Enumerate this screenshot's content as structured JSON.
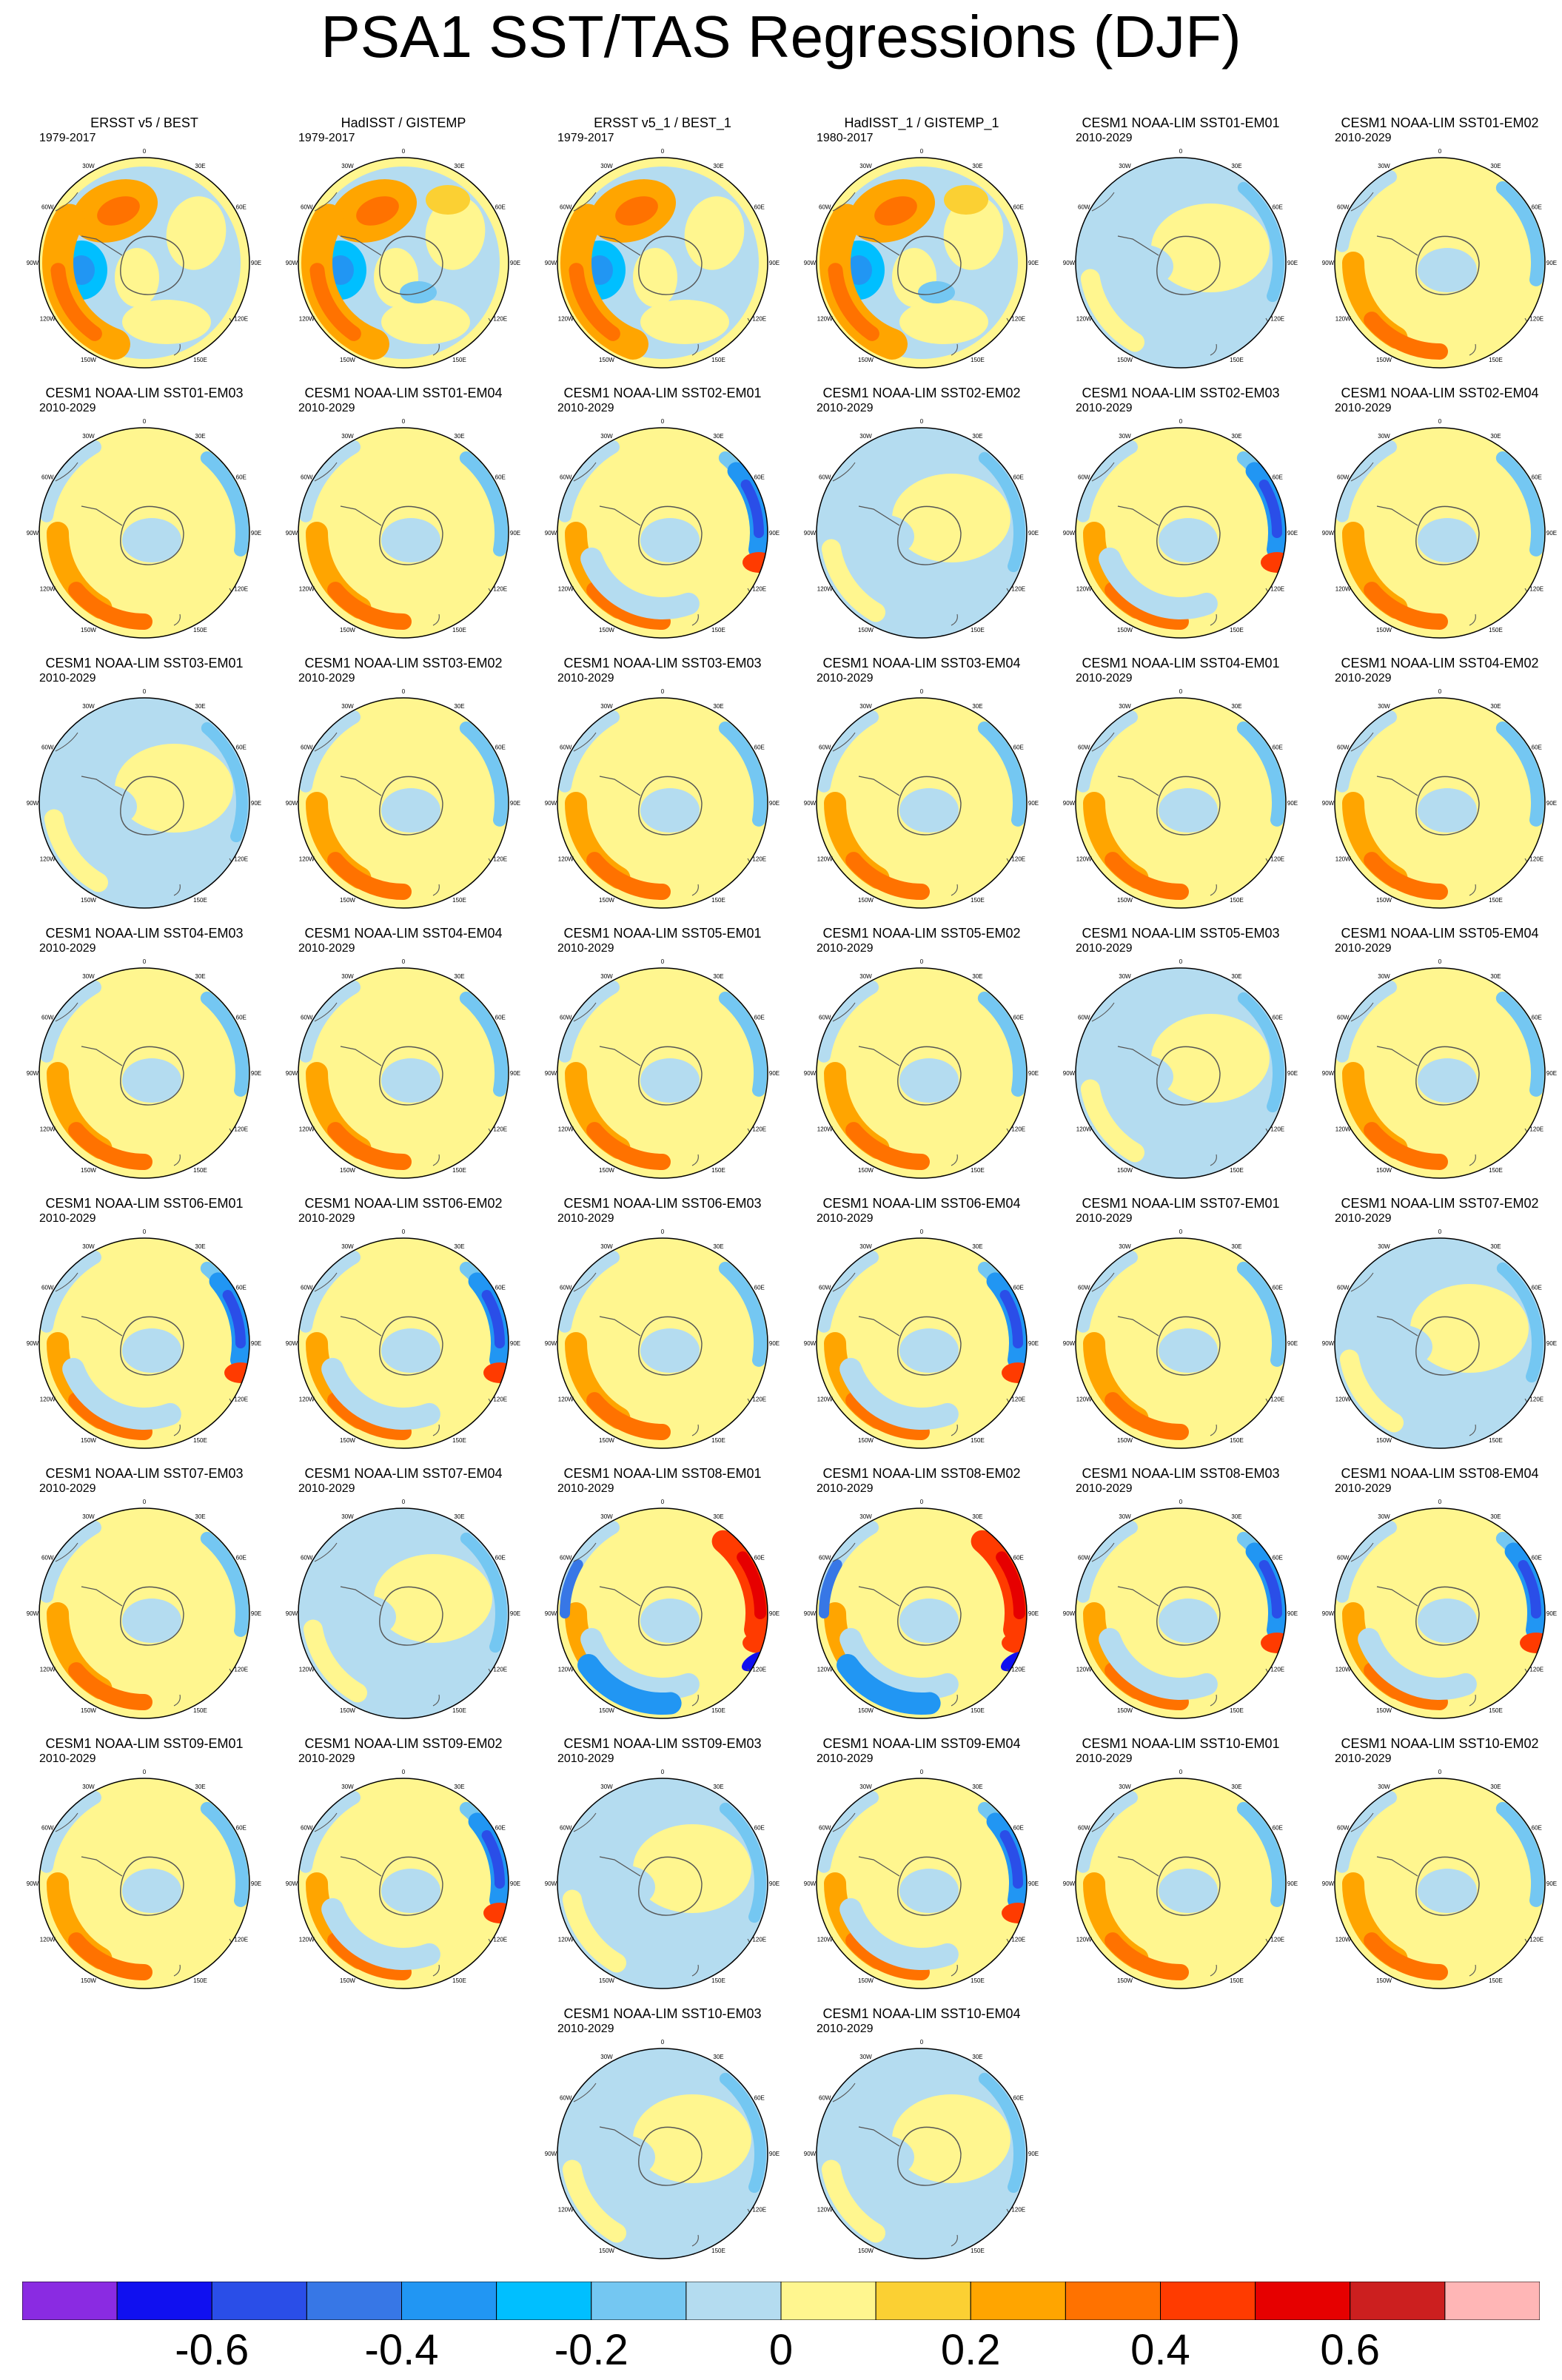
{
  "title": "PSA1 SST/TAS Regressions (DJF)",
  "map_labels": {
    "lon_ticks": [
      "0",
      "30E",
      "60E",
      "90E",
      "120E",
      "150E",
      "180",
      "150W",
      "120W",
      "90W",
      "60W",
      "30W"
    ]
  },
  "palette": [
    "#8a2be2",
    "#1010f0",
    "#2a4ee8",
    "#3777e6",
    "#2196f3",
    "#00bfff",
    "#74c7f2",
    "#b4dcf0",
    "#fff68f",
    "#fbd033",
    "#ffa500",
    "#ff7200",
    "#ff3b00",
    "#e60000",
    "#cc1f1f",
    "#ffb6b6"
  ],
  "colorbar": {
    "labels": [
      "-0.6",
      "-0.4",
      "-0.2",
      "0",
      "0.2",
      "0.4",
      "0.6"
    ]
  },
  "panels": [
    {
      "title": "ERSST v5 / BEST",
      "period": "1979-2017",
      "style": "obs"
    },
    {
      "title": "HadISST / GISTEMP",
      "period": "1979-2017",
      "style": "obs2"
    },
    {
      "title": "ERSST v5_1 / BEST_1",
      "period": "1979-2017",
      "style": "obs"
    },
    {
      "title": "HadISST_1 / GISTEMP_1",
      "period": "1980-2017",
      "style": "obs2"
    },
    {
      "title": "CESM1 NOAA-LIM SST01-EM01",
      "period": "2010-2029",
      "style": "blue"
    },
    {
      "title": "CESM1 NOAA-LIM SST01-EM02",
      "period": "2010-2029",
      "style": "yellow"
    },
    {
      "title": "CESM1 NOAA-LIM SST01-EM03",
      "period": "2010-2029",
      "style": "yellow"
    },
    {
      "title": "CESM1 NOAA-LIM SST01-EM04",
      "period": "2010-2029",
      "style": "yellow"
    },
    {
      "title": "CESM1 NOAA-LIM SST02-EM01",
      "period": "2010-2029",
      "style": "strong"
    },
    {
      "title": "CESM1 NOAA-LIM SST02-EM02",
      "period": "2010-2029",
      "style": "blue"
    },
    {
      "title": "CESM1 NOAA-LIM SST02-EM03",
      "period": "2010-2029",
      "style": "strong"
    },
    {
      "title": "CESM1 NOAA-LIM SST02-EM04",
      "period": "2010-2029",
      "style": "yellow"
    },
    {
      "title": "CESM1 NOAA-LIM SST03-EM01",
      "period": "2010-2029",
      "style": "blue"
    },
    {
      "title": "CESM1 NOAA-LIM SST03-EM02",
      "period": "2010-2029",
      "style": "yellow"
    },
    {
      "title": "CESM1 NOAA-LIM SST03-EM03",
      "period": "2010-2029",
      "style": "yellow"
    },
    {
      "title": "CESM1 NOAA-LIM SST03-EM04",
      "period": "2010-2029",
      "style": "yellow"
    },
    {
      "title": "CESM1 NOAA-LIM SST04-EM01",
      "period": "2010-2029",
      "style": "yellow"
    },
    {
      "title": "CESM1 NOAA-LIM SST04-EM02",
      "period": "2010-2029",
      "style": "yellow"
    },
    {
      "title": "CESM1 NOAA-LIM SST04-EM03",
      "period": "2010-2029",
      "style": "yellow"
    },
    {
      "title": "CESM1 NOAA-LIM SST04-EM04",
      "period": "2010-2029",
      "style": "yellow"
    },
    {
      "title": "CESM1 NOAA-LIM SST05-EM01",
      "period": "2010-2029",
      "style": "yellow"
    },
    {
      "title": "CESM1 NOAA-LIM SST05-EM02",
      "period": "2010-2029",
      "style": "yellow"
    },
    {
      "title": "CESM1 NOAA-LIM SST05-EM03",
      "period": "2010-2029",
      "style": "blue"
    },
    {
      "title": "CESM1 NOAA-LIM SST05-EM04",
      "period": "2010-2029",
      "style": "yellow"
    },
    {
      "title": "CESM1 NOAA-LIM SST06-EM01",
      "period": "2010-2029",
      "style": "strong"
    },
    {
      "title": "CESM1 NOAA-LIM SST06-EM02",
      "period": "2010-2029",
      "style": "strong"
    },
    {
      "title": "CESM1 NOAA-LIM SST06-EM03",
      "period": "2010-2029",
      "style": "yellow"
    },
    {
      "title": "CESM1 NOAA-LIM SST06-EM04",
      "period": "2010-2029",
      "style": "strong"
    },
    {
      "title": "CESM1 NOAA-LIM SST07-EM01",
      "period": "2010-2029",
      "style": "yellow"
    },
    {
      "title": "CESM1 NOAA-LIM SST07-EM02",
      "period": "2010-2029",
      "style": "blue"
    },
    {
      "title": "CESM1 NOAA-LIM SST07-EM03",
      "period": "2010-2029",
      "style": "yellow"
    },
    {
      "title": "CESM1 NOAA-LIM SST07-EM04",
      "period": "2010-2029",
      "style": "blue"
    },
    {
      "title": "CESM1 NOAA-LIM SST08-EM01",
      "period": "2010-2029",
      "style": "extreme"
    },
    {
      "title": "CESM1 NOAA-LIM SST08-EM02",
      "period": "2010-2029",
      "style": "extreme"
    },
    {
      "title": "CESM1 NOAA-LIM SST08-EM03",
      "period": "2010-2029",
      "style": "strong"
    },
    {
      "title": "CESM1 NOAA-LIM SST08-EM04",
      "period": "2010-2029",
      "style": "strong"
    },
    {
      "title": "CESM1 NOAA-LIM SST09-EM01",
      "period": "2010-2029",
      "style": "yellow"
    },
    {
      "title": "CESM1 NOAA-LIM SST09-EM02",
      "period": "2010-2029",
      "style": "strong"
    },
    {
      "title": "CESM1 NOAA-LIM SST09-EM03",
      "period": "2010-2029",
      "style": "blue"
    },
    {
      "title": "CESM1 NOAA-LIM SST09-EM04",
      "period": "2010-2029",
      "style": "strong"
    },
    {
      "title": "CESM1 NOAA-LIM SST10-EM01",
      "period": "2010-2029",
      "style": "yellow"
    },
    {
      "title": "CESM1 NOAA-LIM SST10-EM02",
      "period": "2010-2029",
      "style": "yellow"
    },
    {
      "title": "CESM1 NOAA-LIM SST10-EM03",
      "period": "2010-2029",
      "style": "blue"
    },
    {
      "title": "CESM1 NOAA-LIM SST10-EM04",
      "period": "2010-2029",
      "style": "blue"
    }
  ]
}
